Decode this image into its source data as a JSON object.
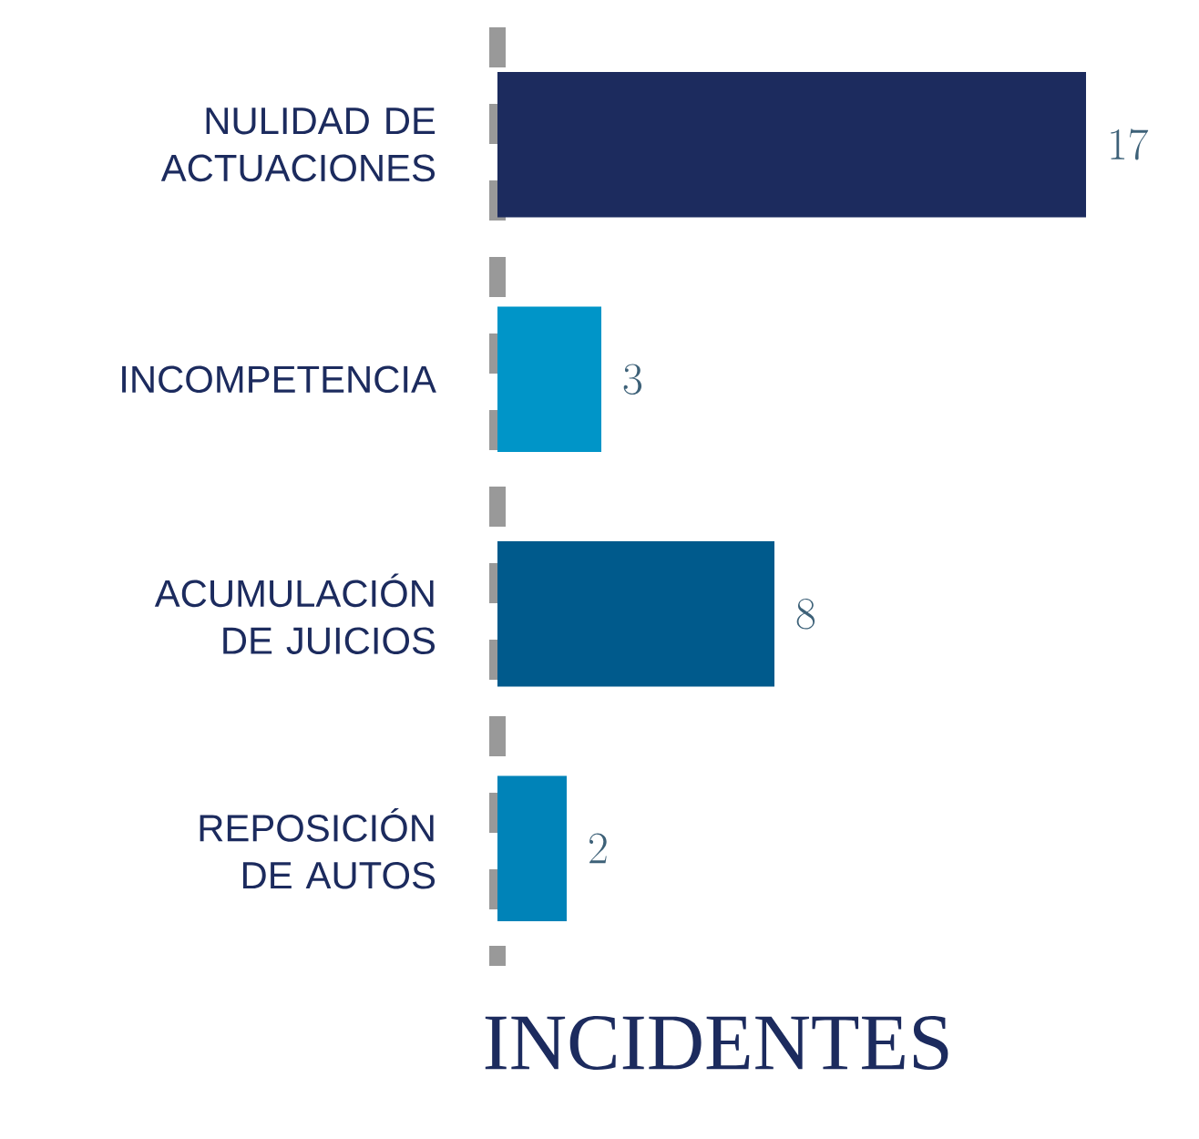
{
  "chart_data": {
    "type": "bar",
    "orientation": "horizontal",
    "title": "INCIDENTES",
    "categories": [
      "NULIDAD DE ACTUACIONES",
      "INCOMPETENCIA",
      "ACUMULACIÓN DE JUICIOS",
      "REPOSICIÓN DE AUTOS"
    ],
    "values": [
      17,
      3,
      8,
      2
    ],
    "colors": [
      "#1c2b5e",
      "#0095c8",
      "#005a8c",
      "#0083b8"
    ],
    "data_labels": true
  }
}
